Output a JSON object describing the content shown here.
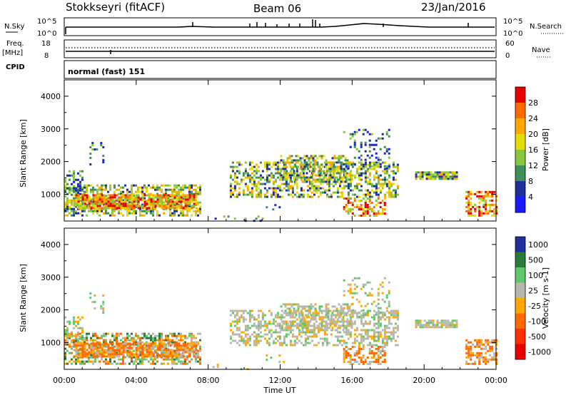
{
  "header": {
    "station": "Stokkseyri (fitACF)",
    "beam": "Beam 06",
    "date": "23/Jan/2016"
  },
  "nsky_panel": {
    "left_label": "N.Sky",
    "left_ticks": [
      "10^5",
      "10^0"
    ],
    "right_label": "N.Search",
    "right_ticks": [
      "10^5",
      "10^0"
    ]
  },
  "freq_panel": {
    "left_label_1": "Freq.",
    "left_label_2": "[MHz]",
    "left_ticks": [
      "18",
      "8"
    ],
    "right_label": "Nave",
    "right_ticks": [
      "60",
      "0"
    ]
  },
  "cpid_panel": {
    "label": "CPID",
    "value": "normal (fast) 151"
  },
  "chart_data": [
    {
      "type": "heatmap",
      "ylabel": "Slant Range [km]",
      "ylim": [
        180,
        4500
      ],
      "y_ticks": [
        "1000",
        "2000",
        "3000",
        "4000"
      ],
      "x_ticks": [
        "00:00",
        "04:00",
        "08:00",
        "12:00",
        "16:00",
        "20:00",
        "00:00"
      ],
      "colorbar": {
        "label": "Power [dB]",
        "ticks": [
          "28",
          "24",
          "20",
          "16",
          "12",
          "8",
          "4"
        ],
        "colors": [
          "#e60000",
          "#ff6a00",
          "#ffa800",
          "#e5dd00",
          "#86c83a",
          "#3f8f5a",
          "#1f2f98",
          "#1a1aff"
        ]
      }
    },
    {
      "type": "heatmap",
      "ylabel": "Slant Range [km]",
      "ylim": [
        180,
        4500
      ],
      "y_ticks": [
        "1000",
        "2000",
        "3000",
        "4000"
      ],
      "x_ticks": [
        "00:00",
        "04:00",
        "08:00",
        "12:00",
        "16:00",
        "20:00",
        "00:00"
      ],
      "xlabel": "Time UT",
      "colorbar": {
        "label": "Velocity [m s-1]",
        "ticks": [
          "1000",
          "500",
          "100",
          "25",
          "-25",
          "-100",
          "-500",
          "-1000"
        ],
        "colors": [
          "#1f2fa0",
          "#2a7a3a",
          "#5fc86a",
          "#b8b8b0",
          "#ffa800",
          "#ff6a00",
          "#ff3000",
          "#e60000"
        ]
      }
    }
  ]
}
